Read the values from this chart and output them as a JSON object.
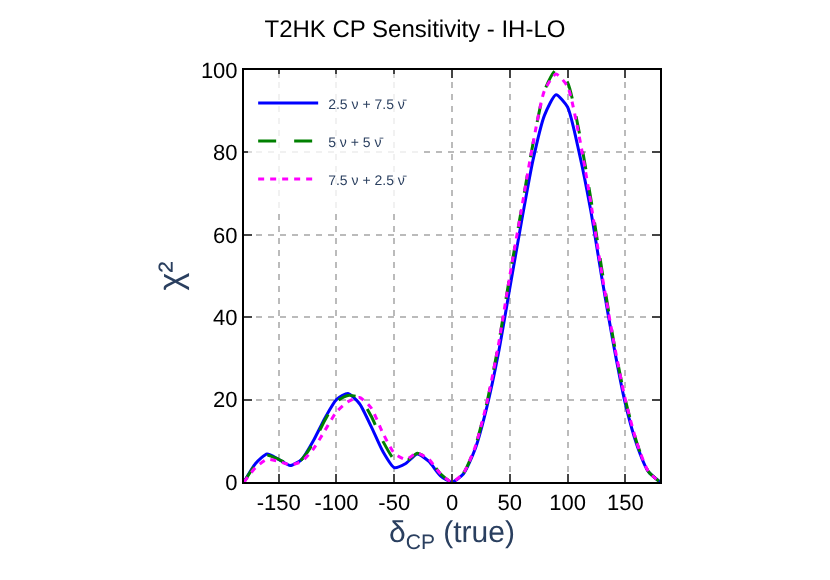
{
  "chart_data": {
    "type": "line",
    "title": "T2HK CP Sensitivity - IH-LO",
    "xlabel": "δ$_{CP}$ (true)",
    "ylabel": "χ²",
    "x": [
      -180,
      -170,
      -160,
      -150,
      -140,
      -130,
      -120,
      -110,
      -100,
      -90,
      -80,
      -70,
      -60,
      -50,
      -40,
      -30,
      -20,
      -10,
      0,
      10,
      20,
      30,
      40,
      50,
      60,
      70,
      80,
      90,
      100,
      110,
      120,
      130,
      140,
      150,
      160,
      170,
      180
    ],
    "series": [
      {
        "name": "2.5 ν + 7.5 ν̄",
        "color": "#0000ff",
        "line_style": "solid",
        "values": [
          0,
          4.5,
          6.8,
          5.5,
          4,
          5.5,
          10,
          15.5,
          20,
          21.5,
          19,
          13.5,
          7.5,
          3.5,
          4.5,
          6.8,
          5,
          1.5,
          0,
          2,
          8,
          18,
          31,
          47,
          63,
          78,
          89,
          94,
          91,
          80,
          66,
          49,
          33,
          19,
          9,
          2.5,
          0
        ]
      },
      {
        "name": "5 ν + 5 ν̄",
        "color": "#008000",
        "line_style": "dashed",
        "values": [
          0,
          4.2,
          6.5,
          5.5,
          4.2,
          5.5,
          9.5,
          15,
          19.5,
          21,
          20.5,
          16,
          10,
          5.5,
          5,
          7,
          5.5,
          2,
          0,
          2.2,
          8.5,
          19,
          33,
          50,
          66,
          82,
          95,
          100,
          97,
          85,
          69,
          51,
          34,
          20,
          9.5,
          2.5,
          0
        ]
      },
      {
        "name": "7.5 ν + 2.5 ν̄",
        "color": "#ff00ff",
        "line_style": "dotted",
        "values": [
          0,
          3.5,
          5.5,
          5,
          4.2,
          5,
          8,
          12.5,
          17,
          19.5,
          20.5,
          18,
          12,
          7,
          5.5,
          7,
          5.5,
          2,
          0,
          2.2,
          8.5,
          19,
          33,
          50,
          66,
          82,
          95,
          99,
          96,
          84,
          68,
          50,
          34,
          20,
          9.5,
          2.5,
          0
        ]
      }
    ],
    "xlim": [
      -180,
      180
    ],
    "ylim": [
      0,
      100
    ],
    "xticks": [
      -150,
      -100,
      -50,
      0,
      50,
      100,
      150
    ],
    "yticks": [
      0,
      20,
      40,
      60,
      80,
      100
    ],
    "grid": true,
    "legend": "top left"
  }
}
